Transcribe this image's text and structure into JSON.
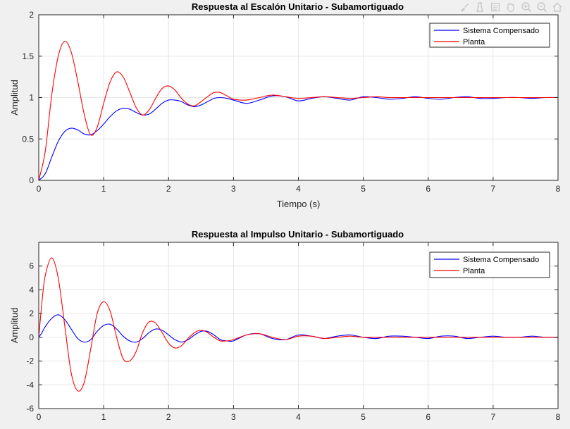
{
  "toolbar": {
    "buttons": [
      {
        "name": "brush-icon"
      },
      {
        "name": "datatip-icon"
      },
      {
        "name": "legend-insert-icon"
      },
      {
        "name": "pan-hand-icon"
      },
      {
        "name": "zoom-in-icon"
      },
      {
        "name": "zoom-out-icon"
      },
      {
        "name": "home-icon"
      }
    ]
  },
  "chart_data": [
    {
      "type": "line",
      "title": "Respuesta al Escalón Unitario - Subamortiguado",
      "xlabel": "Tiempo (s)",
      "ylabel": "Amplitud",
      "xlim": [
        0,
        8
      ],
      "ylim": [
        0,
        2
      ],
      "xticks": [
        "0",
        "1",
        "2",
        "3",
        "4",
        "5",
        "6",
        "7",
        "8"
      ],
      "yticks": [
        "0",
        "0.5",
        "1",
        "1.5",
        "2"
      ],
      "grid": true,
      "legend_position": "top-right",
      "x": [
        0,
        0.1,
        0.2,
        0.3,
        0.4,
        0.5,
        0.6,
        0.7,
        0.8,
        0.9,
        1.0,
        1.1,
        1.2,
        1.3,
        1.4,
        1.5,
        1.6,
        1.7,
        1.8,
        1.9,
        2.0,
        2.1,
        2.2,
        2.3,
        2.4,
        2.5,
        2.6,
        2.7,
        2.8,
        2.9,
        3.0,
        3.2,
        3.4,
        3.6,
        3.8,
        4.0,
        4.2,
        4.4,
        4.6,
        4.8,
        5.0,
        5.2,
        5.4,
        5.6,
        5.8,
        6.0,
        6.2,
        6.4,
        6.6,
        6.8,
        7.0,
        7.2,
        7.4,
        7.6,
        7.8,
        8.0
      ],
      "series": [
        {
          "name": "Sistema Compensado",
          "color": "#0000ff",
          "values": [
            0,
            0.08,
            0.28,
            0.47,
            0.59,
            0.63,
            0.61,
            0.56,
            0.55,
            0.6,
            0.68,
            0.77,
            0.84,
            0.87,
            0.86,
            0.82,
            0.79,
            0.8,
            0.86,
            0.93,
            0.97,
            0.97,
            0.95,
            0.91,
            0.89,
            0.91,
            0.95,
            0.99,
            1.0,
            0.99,
            0.97,
            0.93,
            0.97,
            1.02,
            1.01,
            0.96,
            0.99,
            1.01,
            0.99,
            0.97,
            1.01,
            1.0,
            0.98,
            0.99,
            1.01,
            0.99,
            0.98,
            1.0,
            1.01,
            0.99,
            0.99,
            1.0,
            1.0,
            0.99,
            1.0,
            1.0
          ]
        },
        {
          "name": "Planta",
          "color": "#ff0000",
          "values": [
            0,
            0.35,
            1.03,
            1.5,
            1.68,
            1.55,
            1.2,
            0.8,
            0.55,
            0.64,
            0.93,
            1.19,
            1.31,
            1.25,
            1.07,
            0.88,
            0.79,
            0.85,
            0.99,
            1.11,
            1.14,
            1.09,
            0.99,
            0.92,
            0.9,
            0.95,
            1.01,
            1.06,
            1.06,
            1.02,
            0.98,
            0.97,
            1.0,
            1.03,
            1.01,
            0.99,
            1.0,
            1.01,
            1.0,
            0.99,
            1.0,
            1.01,
            1.0,
            1.0,
            1.0,
            1.0,
            1.0,
            1.0,
            1.0,
            1.0,
            1.0,
            1.0,
            1.0,
            1.0,
            1.0,
            1.0
          ]
        }
      ]
    },
    {
      "type": "line",
      "title": "Respuesta al Impulso Unitario  - Subamortiguado",
      "xlabel": "",
      "ylabel": "Amplitud",
      "xlim": [
        0,
        8
      ],
      "ylim": [
        -6,
        8
      ],
      "xticks": [
        "0",
        "1",
        "2",
        "3",
        "4",
        "5",
        "6",
        "7",
        "8"
      ],
      "yticks": [
        "-6",
        "-4",
        "-2",
        "0",
        "2",
        "4",
        "6"
      ],
      "grid": true,
      "legend_position": "top-right",
      "x": [
        0,
        0.05,
        0.1,
        0.2,
        0.3,
        0.4,
        0.5,
        0.6,
        0.7,
        0.8,
        0.9,
        1.0,
        1.1,
        1.2,
        1.3,
        1.4,
        1.5,
        1.6,
        1.7,
        1.8,
        1.9,
        2.0,
        2.1,
        2.2,
        2.3,
        2.4,
        2.5,
        2.6,
        2.7,
        2.8,
        2.9,
        3.0,
        3.2,
        3.4,
        3.6,
        3.8,
        4.0,
        4.2,
        4.4,
        4.6,
        4.8,
        5.0,
        5.2,
        5.4,
        5.6,
        5.8,
        6.0,
        6.2,
        6.4,
        6.6,
        6.8,
        7.0,
        7.2,
        7.4,
        7.6,
        7.8,
        8.0
      ],
      "series": [
        {
          "name": "Sistema Compensado",
          "color": "#0000ff",
          "values": [
            0,
            0.4,
            0.9,
            1.6,
            1.9,
            1.5,
            0.7,
            -0.1,
            -0.4,
            -0.2,
            0.5,
            1.0,
            1.1,
            0.7,
            0.1,
            -0.3,
            -0.4,
            -0.1,
            0.4,
            0.7,
            0.6,
            0.2,
            -0.2,
            -0.4,
            -0.2,
            0.2,
            0.5,
            0.5,
            0.2,
            -0.2,
            -0.3,
            -0.3,
            0.2,
            0.3,
            -0.1,
            -0.2,
            0.2,
            0.1,
            -0.1,
            0.1,
            0.2,
            0.0,
            -0.1,
            0.1,
            0.1,
            0.0,
            -0.1,
            0.1,
            0.1,
            -0.1,
            0.0,
            0.1,
            0.0,
            0.0,
            0.1,
            0.0,
            0.0
          ]
        },
        {
          "name": "Planta",
          "color": "#ff0000",
          "values": [
            0,
            3.0,
            5.2,
            6.7,
            5.0,
            1.0,
            -3.0,
            -4.5,
            -3.8,
            -1.0,
            2.0,
            3.0,
            2.2,
            0.0,
            -1.8,
            -2.0,
            -1.2,
            0.4,
            1.3,
            1.2,
            0.4,
            -0.5,
            -0.9,
            -0.7,
            -0.1,
            0.4,
            0.6,
            0.4,
            0.0,
            -0.3,
            -0.3,
            -0.2,
            0.2,
            0.3,
            0.0,
            -0.2,
            0.1,
            0.1,
            -0.1,
            0.0,
            0.1,
            0.0,
            0.0,
            0.0,
            0.0,
            0.0,
            0.0,
            0.0,
            0.0,
            0.0,
            0.0,
            0.0,
            0.0,
            0.0,
            0.0,
            0.0,
            0.0
          ]
        }
      ]
    }
  ]
}
